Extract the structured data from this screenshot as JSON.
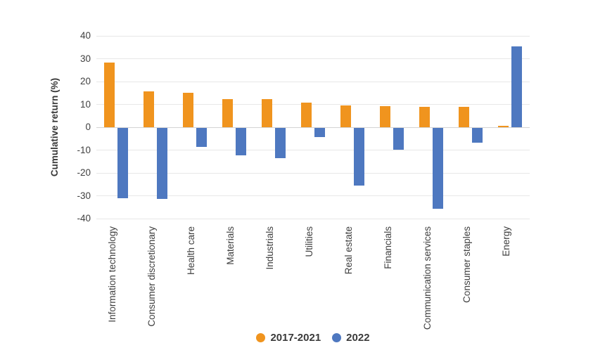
{
  "chart_data": {
    "type": "bar",
    "title": "",
    "xlabel": "",
    "ylabel": "Cumulative return (%)",
    "ylim": [
      -40,
      40
    ],
    "ytick_step": 10,
    "grid": true,
    "legend_position": "bottom-center",
    "categories": [
      "Information technology",
      "Consumer discretionary",
      "Health care",
      "Materials",
      "Industrials",
      "Utilities",
      "Real estate",
      "Financials",
      "Communication services",
      "Consumer staples",
      "Energy"
    ],
    "series": [
      {
        "name": "2017-2021",
        "color": "#F0941E",
        "values": [
          28.3,
          15.8,
          15.2,
          12.4,
          12.2,
          10.7,
          9.4,
          9.2,
          8.9,
          8.9,
          0.6
        ]
      },
      {
        "name": "2022",
        "color": "#4E78C0",
        "values": [
          -30.7,
          -31.0,
          -8.4,
          -11.9,
          -13.2,
          -4.0,
          -25.1,
          -9.6,
          -35.3,
          -6.5,
          35.5
        ]
      }
    ]
  },
  "colors": {
    "background": "#FFFFFF",
    "gridline": "#E7E7E7",
    "zero_line": "#D4D4D4",
    "axis_text": "#404040",
    "legend_text": "#3A3A3A"
  }
}
